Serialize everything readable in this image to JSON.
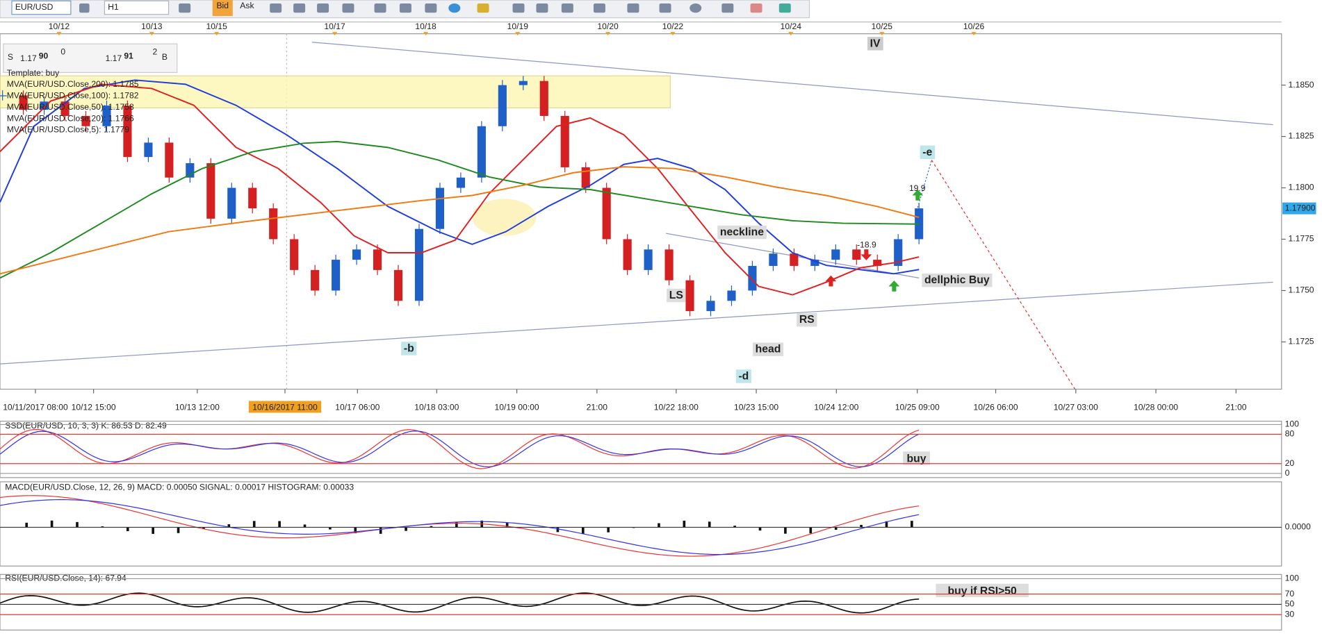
{
  "toolbar": {
    "symbol": "EUR/USD",
    "timeframe": "H1",
    "bid_button": "Bid",
    "ask_button": "Ask"
  },
  "quote": {
    "sell": "S",
    "sell_big": "1.17",
    "sell_pips": "90",
    "sell_frac": "0",
    "buy_big": "1.17",
    "buy_pips": "91",
    "buy_frac": "2",
    "buy": "B"
  },
  "legend": [
    "Template: buy",
    "MVA(EUR/USD.Close,200): 1.1785",
    "MVA(EUR/USD.Close,100): 1.1782",
    "MVA(EUR/USD.Close,50): 1.1758",
    "MVA(EUR/USD.Close,20): 1.1766",
    "MVA(EUR/USD.Close,5): 1.1779"
  ],
  "chart_data": {
    "type": "candlestick",
    "closes": [
      1.1845,
      1.1838,
      1.1842,
      1.1835,
      1.183,
      1.184,
      1.1815,
      1.1822,
      1.1805,
      1.1812,
      1.1785,
      1.18,
      1.179,
      1.1775,
      1.176,
      1.175,
      1.1765,
      1.177,
      1.176,
      1.1745,
      1.178,
      1.18,
      1.1805,
      1.183,
      1.185,
      1.1852,
      1.1835,
      1.181,
      1.18,
      1.1775,
      1.176,
      1.177,
      1.1755,
      1.174,
      1.1745,
      1.175,
      1.1762,
      1.1768,
      1.1762,
      1.1765,
      1.177,
      1.1765,
      1.1762,
      1.1775,
      1.179
    ],
    "up_color": "#1f5fc8",
    "down_color": "#d42020",
    "ylim": [
      1.1702,
      1.1875
    ],
    "yticks": [
      {
        "value": 1.185,
        "label": "1.1850"
      },
      {
        "value": 1.1825,
        "label": "1.1825"
      },
      {
        "value": 1.18,
        "label": "1.1800"
      },
      {
        "value": 1.1775,
        "label": "1.1775"
      },
      {
        "value": 1.175,
        "label": "1.1750"
      },
      {
        "value": 1.1725,
        "label": "1.1725"
      }
    ],
    "last_price": {
      "value": 1.179,
      "label": "1.17900"
    },
    "date_labels": [
      "10/12",
      "10/13",
      "10/15",
      "10/17",
      "10/18",
      "10/19",
      "10/20",
      "10/22",
      "10/24",
      "10/25",
      "10/26"
    ],
    "time_labels": [
      "10/11/2017 08:00",
      "10/12 15:00",
      "10/13 12:00",
      "10/16/2017 11:00",
      "10/17 06:00",
      "10/18 03:00",
      "10/19 00:00",
      "21:00",
      "10/22 18:00",
      "10/23 15:00",
      "10/24 12:00",
      "10/25 09:00",
      "10/26 06:00",
      "10/27 03:00",
      "10/28 00:00",
      "21:00"
    ],
    "annotations": [
      "IV",
      "-e",
      "19.9",
      "neckline",
      "-18.9",
      "dellphic Buy",
      "LS",
      "RS",
      "-b",
      "head",
      "-d"
    ]
  },
  "indicators": {
    "stochastic": {
      "label": "SSD(EUR/USD, 10, 3, 3)   K: 86.53   D: 82.49",
      "yticks": [
        100,
        80,
        20,
        0
      ],
      "note": "buy"
    },
    "macd": {
      "label": "MACD(EUR/USD.Close, 12, 26, 9)   MACD: 0.00050   SIGNAL: 0.00017   HISTOGRAM: 0.00033",
      "yticks": [
        {
          "value": 0,
          "label": "0.0000"
        }
      ]
    },
    "rsi": {
      "label": "RSI(EUR/USD.Close, 14): 67.94",
      "yticks": [
        100,
        70,
        50,
        30
      ],
      "note": "buy  if RSI>50"
    }
  }
}
